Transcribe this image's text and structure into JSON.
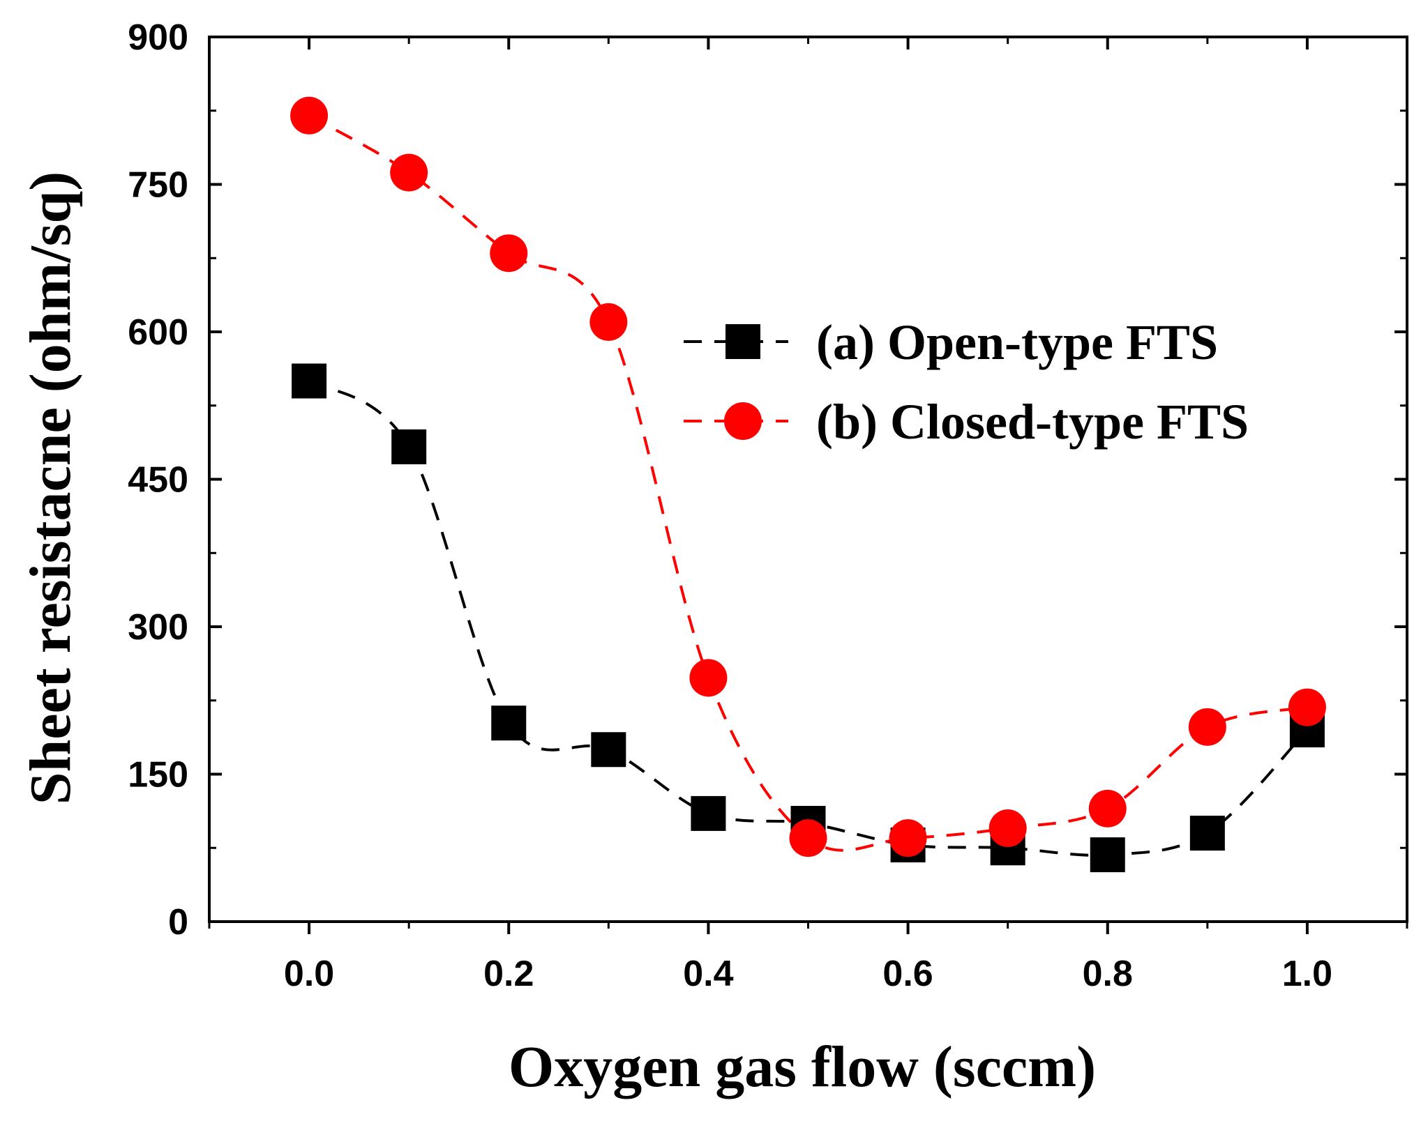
{
  "chart_data": {
    "type": "line",
    "title": "",
    "xlabel": "Oxygen gas flow (sccm)",
    "ylabel": "Sheet resistacne (ohm/sq)",
    "xlim": [
      -0.1,
      1.1
    ],
    "ylim": [
      0,
      900
    ],
    "xticks": [
      0.0,
      0.2,
      0.4,
      0.6,
      0.8,
      1.0
    ],
    "xtick_labels": [
      "0.0",
      "0.2",
      "0.4",
      "0.6",
      "0.8",
      "1.0"
    ],
    "yticks": [
      0,
      150,
      300,
      450,
      600,
      750,
      900
    ],
    "ytick_labels": [
      "0",
      "150",
      "300",
      "450",
      "600",
      "750",
      "900"
    ],
    "grid": false,
    "legend_position": "center-right",
    "x": [
      0.0,
      0.1,
      0.2,
      0.3,
      0.4,
      0.5,
      0.6,
      0.7,
      0.8,
      0.9,
      1.0
    ],
    "series": [
      {
        "name": "(a) Open-type FTS",
        "marker": "square",
        "color": "#000000",
        "values": [
          550,
          483,
          202,
          175,
          110,
          100,
          78,
          75,
          68,
          90,
          195
        ]
      },
      {
        "name": "(b) Closed-type FTS",
        "marker": "circle",
        "color": "#ff0000",
        "values": [
          820,
          762,
          680,
          610,
          248,
          85,
          85,
          95,
          115,
          198,
          218
        ]
      }
    ]
  }
}
